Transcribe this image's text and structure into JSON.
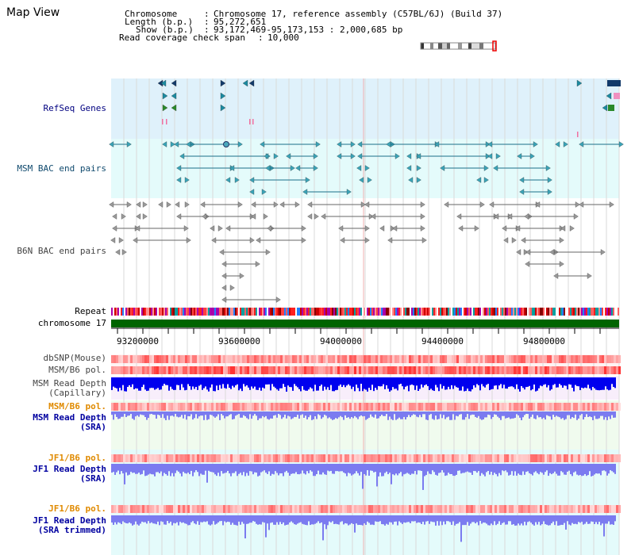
{
  "page": {
    "title": "Map View"
  },
  "header": {
    "chromosome_label": "Chromosome",
    "chromosome_value": "Chromosome 17, reference assembly (C57BL/6J) (Build 37)",
    "length_label": "Length (b.p.)",
    "length_value": "95,272,651",
    "show_label": "Show (b.p.)",
    "show_value": "93,172,469-95,173,153 : 2,000,685 bp",
    "coverage_label": "Read coverage check span",
    "coverage_value": "10,000"
  },
  "tracks": {
    "refseq": "RefSeq Genes",
    "msm_bac": "MSM BAC end pairs",
    "b6n_bac": "B6N BAC end pairs",
    "repeat": "Repeat",
    "chromosome": "chromosome 17",
    "dbsnp": "dbSNP(Mouse)",
    "msm_b6_pol_1": "MSM/B6 pol.",
    "msm_read_depth_cap_1": "MSM Read Depth",
    "msm_read_depth_cap_2": "(Capillary)",
    "msm_b6_pol_2": "MSM/B6 pol.",
    "msm_read_depth_sra_1": "MSM Read Depth",
    "msm_read_depth_sra_2": "(SRA)",
    "jf1_b6_pol_1": "JF1/B6 pol.",
    "jf1_read_depth_sra_1": "JF1 Read Depth",
    "jf1_read_depth_sra_2": "(SRA)",
    "jf1_b6_pol_2": "JF1/B6 pol.",
    "jf1_read_depth_trim_1": "JF1 Read Depth",
    "jf1_read_depth_trim_2": "(SRA trimmed)"
  },
  "axis": {
    "ticks": [
      "93200000",
      "93600000",
      "94000000",
      "94400000",
      "94800000"
    ]
  },
  "colors": {
    "refseq_bg": "#dff1fb",
    "msm_bg": "#e4fbfb",
    "gene_teal": "#1b8aa0",
    "gene_green": "#2a8a2a",
    "gene_navy": "#123a6a",
    "bac_teal": "#1a6f8a",
    "b6n_grey": "#666666",
    "chrom_green": "#006400",
    "pol_red": "#ff3030",
    "depth_blue": "#0000ee",
    "depth_lilac": "#7b7bf0"
  }
}
